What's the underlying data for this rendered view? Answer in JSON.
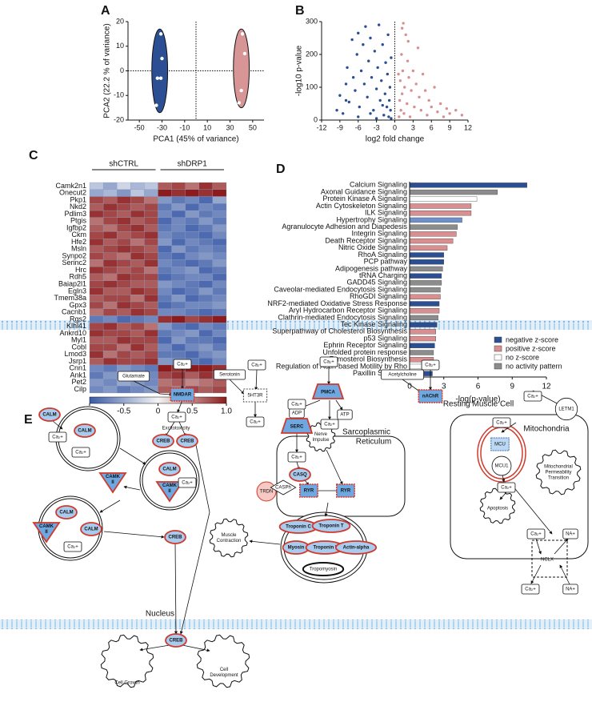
{
  "chart_data": [
    {
      "type": "scatter",
      "panel": "A",
      "xlabel": "PCA1 (45% of variance)",
      "ylabel": "PCA2 (22.2 % of variance)",
      "xlim": [
        -60,
        60
      ],
      "xticks": [
        -50,
        -30,
        -10,
        10,
        30,
        50
      ],
      "ylim": [
        -20,
        20
      ],
      "yticks": [
        -20,
        -10,
        0,
        10,
        20
      ],
      "reference_lines": {
        "x": 0,
        "y": 0
      },
      "ellipses": [
        {
          "cx": -32,
          "cy": 0,
          "rx": 7,
          "ry": 17,
          "color": "#2c4f93"
        },
        {
          "cx": 40,
          "cy": 1,
          "rx": 7,
          "ry": 16,
          "color": "#d79595"
        }
      ],
      "series": [
        {
          "color": "#ffffff",
          "x": [
            -31,
            -30,
            -34,
            -31,
            -35,
            41,
            43,
            40,
            38
          ],
          "values": [
            15,
            5,
            -3,
            -3,
            -14,
            15,
            7,
            -8,
            -13
          ]
        }
      ]
    },
    {
      "type": "scatter",
      "panel": "B",
      "xlabel": "log2 fold change",
      "ylabel": "-log10 p-value",
      "xlim": [
        -12,
        12
      ],
      "xticks": [
        -12,
        -9,
        -6,
        -3,
        0,
        3,
        6,
        9,
        12
      ],
      "ylim": [
        0,
        300
      ],
      "yticks": [
        0,
        100,
        200,
        300
      ],
      "reference_lines": {
        "x": 0
      },
      "series": [
        {
          "color": "#2c4f93",
          "x": [
            -9.5,
            -9,
            -8.5,
            -8,
            -7.8,
            -7.5,
            -7,
            -6.8,
            -6.5,
            -6.2,
            -6,
            -5.8,
            -5.5,
            -5.2,
            -5,
            -4.8,
            -4.5,
            -4.3,
            -4,
            -3.8,
            -3.5,
            -3.3,
            -3,
            -2.8,
            -2.6,
            -2.4,
            -2.2,
            -2,
            -1.8,
            -1.6,
            -1.5,
            -1.3,
            -1.2,
            -1.1,
            -1,
            -0.9,
            -0.8,
            -0.7,
            -0.6,
            -0.6,
            -4,
            -6,
            -3,
            -8,
            -2
          ],
          "values": [
            30,
            75,
            20,
            110,
            160,
            55,
            245,
            130,
            90,
            200,
            265,
            40,
            150,
            230,
            110,
            285,
            70,
            180,
            250,
            130,
            30,
            210,
            95,
            160,
            290,
            60,
            120,
            230,
            15,
            80,
            175,
            40,
            140,
            260,
            10,
            60,
            100,
            30,
            190,
            5,
            20,
            10,
            5,
            60,
            45
          ]
        },
        {
          "color": "#d98f8f",
          "x": [
            0.7,
            0.8,
            0.9,
            1,
            1.1,
            1.2,
            1.3,
            1.5,
            1.6,
            1.8,
            2,
            2.1,
            2.3,
            2.5,
            2.7,
            3,
            3.2,
            3.5,
            3.8,
            4,
            4.3,
            4.6,
            5,
            5.3,
            5.6,
            6,
            6.5,
            7,
            7.5,
            8,
            8.5,
            9,
            10,
            11,
            1.2,
            0.6,
            2.2,
            1.4
          ],
          "values": [
            10,
            60,
            120,
            30,
            200,
            80,
            150,
            20,
            100,
            260,
            50,
            180,
            130,
            10,
            90,
            150,
            40,
            110,
            220,
            70,
            30,
            140,
            90,
            15,
            60,
            40,
            100,
            25,
            50,
            10,
            35,
            20,
            30,
            15,
            280,
            140,
            240,
            295
          ]
        }
      ]
    },
    {
      "type": "heatmap",
      "panel": "C",
      "groups": [
        "shCTRL",
        "shDRP1"
      ],
      "rows": [
        "Camk2n1",
        "Onecut2",
        "Pkp1",
        "Nkd2",
        "Pdlim3",
        "Ptgis",
        "Igfbp2",
        "Ckm",
        "Hfe2",
        "Msln",
        "Synpo2",
        "Serinc2",
        "Hrc",
        "Rdh5",
        "Baiap2l1",
        "Egln3",
        "Tmem38a",
        "Gpx3",
        "Cacnb1",
        "Rgs2",
        "Klhl41",
        "Ankrd10",
        "Myl1",
        "Cobl",
        "Lmod3",
        "Jsrp1",
        "Cnn1",
        "Ank1",
        "Pet2",
        "Cilp"
      ],
      "values": [
        [
          -0.3,
          -0.5,
          -0.2,
          -0.4,
          -0.3,
          0.7,
          0.8,
          0.6,
          0.9,
          0.7
        ],
        [
          -0.5,
          -0.4,
          -0.6,
          -0.3,
          -0.5,
          1.0,
          0.9,
          1.0,
          0.9,
          1.0
        ],
        [
          0.8,
          0.7,
          0.9,
          0.8,
          0.6,
          -0.6,
          -0.8,
          -0.7,
          -0.9,
          -0.5
        ],
        [
          0.7,
          0.9,
          0.8,
          0.7,
          0.8,
          -0.8,
          -0.6,
          -0.9,
          -0.7,
          -0.8
        ],
        [
          0.9,
          0.8,
          0.7,
          0.9,
          0.8,
          -0.7,
          -0.9,
          -0.6,
          -0.8,
          -0.7
        ],
        [
          0.6,
          0.8,
          0.9,
          0.7,
          0.8,
          -0.9,
          -0.7,
          -0.8,
          -0.6,
          -0.8
        ],
        [
          0.7,
          0.6,
          0.8,
          0.9,
          0.7,
          -0.8,
          -0.7,
          -0.9,
          -0.8,
          -0.6
        ],
        [
          0.8,
          0.9,
          0.7,
          0.8,
          0.9,
          -0.7,
          -0.8,
          -0.8,
          -0.9,
          -0.7
        ],
        [
          0.9,
          0.7,
          0.8,
          0.6,
          0.8,
          -0.6,
          -0.9,
          -0.7,
          -0.8,
          -0.9
        ],
        [
          0.7,
          0.8,
          0.9,
          0.8,
          0.7,
          -0.9,
          -0.6,
          -0.8,
          -0.7,
          -0.8
        ],
        [
          0.8,
          0.7,
          0.6,
          0.9,
          0.8,
          -0.8,
          -0.9,
          -0.7,
          -0.6,
          -0.7
        ],
        [
          0.6,
          0.9,
          0.8,
          0.7,
          0.9,
          -0.7,
          -0.8,
          -0.9,
          -0.8,
          -0.6
        ],
        [
          0.9,
          0.8,
          0.7,
          0.8,
          0.6,
          -0.8,
          -0.7,
          -0.6,
          -0.9,
          -0.8
        ],
        [
          0.7,
          0.6,
          0.9,
          0.8,
          0.8,
          -0.9,
          -0.8,
          -0.7,
          -0.7,
          -0.9
        ],
        [
          0.8,
          0.9,
          0.8,
          0.7,
          0.7,
          -0.6,
          -0.7,
          -0.8,
          -0.9,
          -0.7
        ],
        [
          0.9,
          0.7,
          0.7,
          0.9,
          0.8,
          -0.7,
          -0.9,
          -0.8,
          -0.6,
          -0.8
        ],
        [
          0.7,
          0.8,
          0.8,
          0.6,
          0.9,
          -0.8,
          -0.6,
          -0.9,
          -0.8,
          -0.7
        ],
        [
          0.8,
          0.6,
          0.9,
          0.8,
          0.7,
          -0.9,
          -0.8,
          -0.7,
          -0.7,
          -0.6
        ],
        [
          0.6,
          0.8,
          0.7,
          0.9,
          0.8,
          -0.7,
          -0.7,
          -0.8,
          -0.9,
          -0.8
        ],
        [
          -0.8,
          -0.7,
          -0.9,
          -0.8,
          -0.7,
          0.9,
          1.0,
          0.8,
          0.9,
          1.0
        ],
        [
          0.8,
          0.9,
          0.7,
          0.8,
          0.6,
          -0.6,
          -0.8,
          -0.9,
          -0.7,
          -0.8
        ],
        [
          0.9,
          0.8,
          0.8,
          0.7,
          0.9,
          -0.8,
          -0.7,
          -0.6,
          -0.9,
          -0.7
        ],
        [
          0.7,
          0.7,
          0.9,
          0.8,
          0.8,
          -0.9,
          -0.6,
          -0.8,
          -0.8,
          -0.9
        ],
        [
          0.8,
          0.8,
          0.6,
          0.9,
          0.7,
          -0.7,
          -0.9,
          -0.7,
          -0.6,
          -0.8
        ],
        [
          0.9,
          0.6,
          0.8,
          0.7,
          0.8,
          -0.8,
          -0.8,
          -0.9,
          -0.7,
          -0.6
        ],
        [
          0.7,
          0.9,
          0.8,
          0.8,
          0.9,
          -0.6,
          -0.7,
          -0.8,
          -0.9,
          -0.7
        ],
        [
          -0.7,
          -0.8,
          -0.6,
          -0.7,
          -0.8,
          1.0,
          0.9,
          1.0,
          1.0,
          0.9
        ],
        [
          -0.8,
          -0.6,
          -0.7,
          -0.9,
          -0.7,
          0.8,
          0.9,
          0.7,
          0.9,
          0.8
        ],
        [
          -0.6,
          -0.7,
          -0.5,
          -0.6,
          -0.7,
          0.6,
          0.7,
          0.5,
          0.6,
          0.7
        ],
        [
          -0.7,
          -0.6,
          -0.8,
          -0.7,
          -0.6,
          0.7,
          0.6,
          0.8,
          0.7,
          0.8
        ]
      ],
      "zlim": [
        -1,
        1
      ],
      "colors": [
        "#3a5ba8",
        "#f4f4f4",
        "#8e1b1b"
      ],
      "zticks": [
        {
          "value": -1,
          "label": "-1.0"
        },
        -0.5,
        0,
        0.5,
        {
          "value": 1,
          "label": "1.0"
        }
      ]
    },
    {
      "type": "barh",
      "panel": "D",
      "categories": [
        "Calcium Signaling",
        "Axonal Guidance Signaling",
        "Protein Kinase A Signaling",
        "Actin Cytoskeleton Signaling",
        "ILK Signaling",
        "Hypertrophy Signaling",
        "Agranulocyte Adhesion and Diapedesis",
        "Integrin Signaling",
        "Death Receptor Signaling",
        "Nitric Oxide Signaling",
        "RhoA Signaling",
        "PCP pathway",
        "Adipogenesis pathway",
        "tRNA Charging",
        "GADD45 Signaling",
        "Caveolar-mediated Endocytosis Signaling",
        "RhoGDI Signaling",
        "NRF2-mediated Oxidative Stress Response",
        "Aryl Hydrocarbon Receptor Signaling",
        "Clathrin-mediated Endocytosis Signaling",
        "Tec Kinase Signaling",
        "Superpathway of Cholesterol Biosynthesis",
        "p53 Signaling",
        "Ephrin Receptor Signaling",
        "Unfolded protein response",
        "Zymosterol Biosynthesis",
        "Regulation of Actin-based Motility by Rho",
        "Paxillin Signaling"
      ],
      "values": [
        10.3,
        7.7,
        5.9,
        5.4,
        5.4,
        4.6,
        4.2,
        4.1,
        3.8,
        3.3,
        3.0,
        3.0,
        2.9,
        2.8,
        2.8,
        2.7,
        2.7,
        2.6,
        2.6,
        2.5,
        2.4,
        2.3,
        2.3,
        2.2,
        2.1,
        2.1,
        2.1,
        2.0
      ],
      "colors": [
        "#2c4f93",
        "#8c8c8c",
        "#ffffff",
        "#d98f8f",
        "#d98f8f",
        "#6f8fc9",
        "#8c8c8c",
        "#d98f8f",
        "#d98f8f",
        "#d98f8f",
        "#2c4f93",
        "#2c4f93",
        "#8c8c8c",
        "#2c4f93",
        "#8c8c8c",
        "#8c8c8c",
        "#d98f8f",
        "#2c4f93",
        "#d98f8f",
        "#8c8c8c",
        "#2c4f93",
        "#d98f8f",
        "#d98f8f",
        "#2c4f93",
        "#8c8c8c",
        "#d98f8f",
        "#ffffff",
        "#2c4f93"
      ],
      "legend": [
        {
          "name": "negative z-score",
          "color": "#2c4f93"
        },
        {
          "name": "positive z-score",
          "color": "#d98f8f"
        },
        {
          "name": "no z-score",
          "color": "#ffffff"
        },
        {
          "name": "no activity pattern",
          "color": "#8c8c8c"
        }
      ],
      "xlim": [
        0,
        12
      ],
      "xticks": [
        0,
        3,
        6,
        9,
        12
      ],
      "xlabel": "-log(p-value)"
    }
  ],
  "diagram": {
    "panel": "E",
    "nodes": [
      {
        "label": "Glutamate"
      },
      {
        "label": "Ca₂+"
      },
      {
        "label": "NMDAR"
      },
      {
        "label": "Ca₂+"
      },
      {
        "label": "Excitotoxicity"
      },
      {
        "label": "CREB"
      },
      {
        "label": "CREB"
      },
      {
        "label": "Serotonin"
      },
      {
        "label": "Ca₂+"
      },
      {
        "label": "5HT3R"
      },
      {
        "label": "Ca₂+"
      },
      {
        "label": "Ca₂+"
      },
      {
        "label": "PMCA"
      },
      {
        "label": "ADP"
      },
      {
        "label": "ATP"
      },
      {
        "label": "Ca₂+"
      },
      {
        "label": "Acetylcholine"
      },
      {
        "label": "Ca₂+"
      },
      {
        "label": "nAChR"
      },
      {
        "label": "Resting Muscle Cell"
      },
      {
        "label": "Sarcoplasmic"
      },
      {
        "label": "Reticulum"
      },
      {
        "label": "Mitochondria"
      },
      {
        "label": "CALM"
      },
      {
        "label": "Ca₂+"
      },
      {
        "label": "CALM"
      },
      {
        "label": "Ca₂+"
      },
      {
        "lines": [
          "CAMK",
          "II"
        ]
      },
      {
        "label": "CALM"
      },
      {
        "lines": [
          "CAMK",
          "II"
        ]
      },
      {
        "label": "Ca₂+"
      },
      {
        "label": "CALM"
      },
      {
        "lines": [
          "CAMK",
          "II"
        ]
      },
      {
        "label": "CALM"
      },
      {
        "label": "Ca₂+"
      },
      {
        "label": "CREB"
      },
      {
        "label": "Nucleus"
      },
      {
        "label": "CREB"
      },
      {
        "label": "Cell Growth"
      },
      {
        "lines": [
          "Cell",
          "Development"
        ]
      },
      {
        "lines": [
          "Muscle",
          "Contraction"
        ]
      },
      {
        "label": "Ca₂+"
      },
      {
        "label": "SERC"
      },
      {
        "label": "Ca₂+"
      },
      {
        "lines": [
          "Nerve",
          "Impulse"
        ]
      },
      {
        "label": "CASQ"
      },
      {
        "label": "TRDN"
      },
      {
        "label": "CASPh"
      },
      {
        "label": "RYR"
      },
      {
        "label": "RYR"
      },
      {
        "label": "Troponin C"
      },
      {
        "label": "Troponin T"
      },
      {
        "label": "Myosin"
      },
      {
        "label": "Troponin I"
      },
      {
        "label": "Actin-alpha"
      },
      {
        "label": "Tropomyosin"
      },
      {
        "label": "Ca₂+"
      },
      {
        "label": "LETM1"
      },
      {
        "label": "Ca₂+"
      },
      {
        "label": "MCU"
      },
      {
        "label": "MCU1"
      },
      {
        "lines": [
          "Mitochondrial",
          "Permeability",
          "Transition"
        ]
      },
      {
        "label": "Ca₂+"
      },
      {
        "label": "Apoptosis"
      },
      {
        "label": "Ca₂+"
      },
      {
        "label": "NA+"
      },
      {
        "label": "NCLX"
      },
      {
        "label": "Ca₂+"
      },
      {
        "label": "NA+"
      }
    ]
  }
}
